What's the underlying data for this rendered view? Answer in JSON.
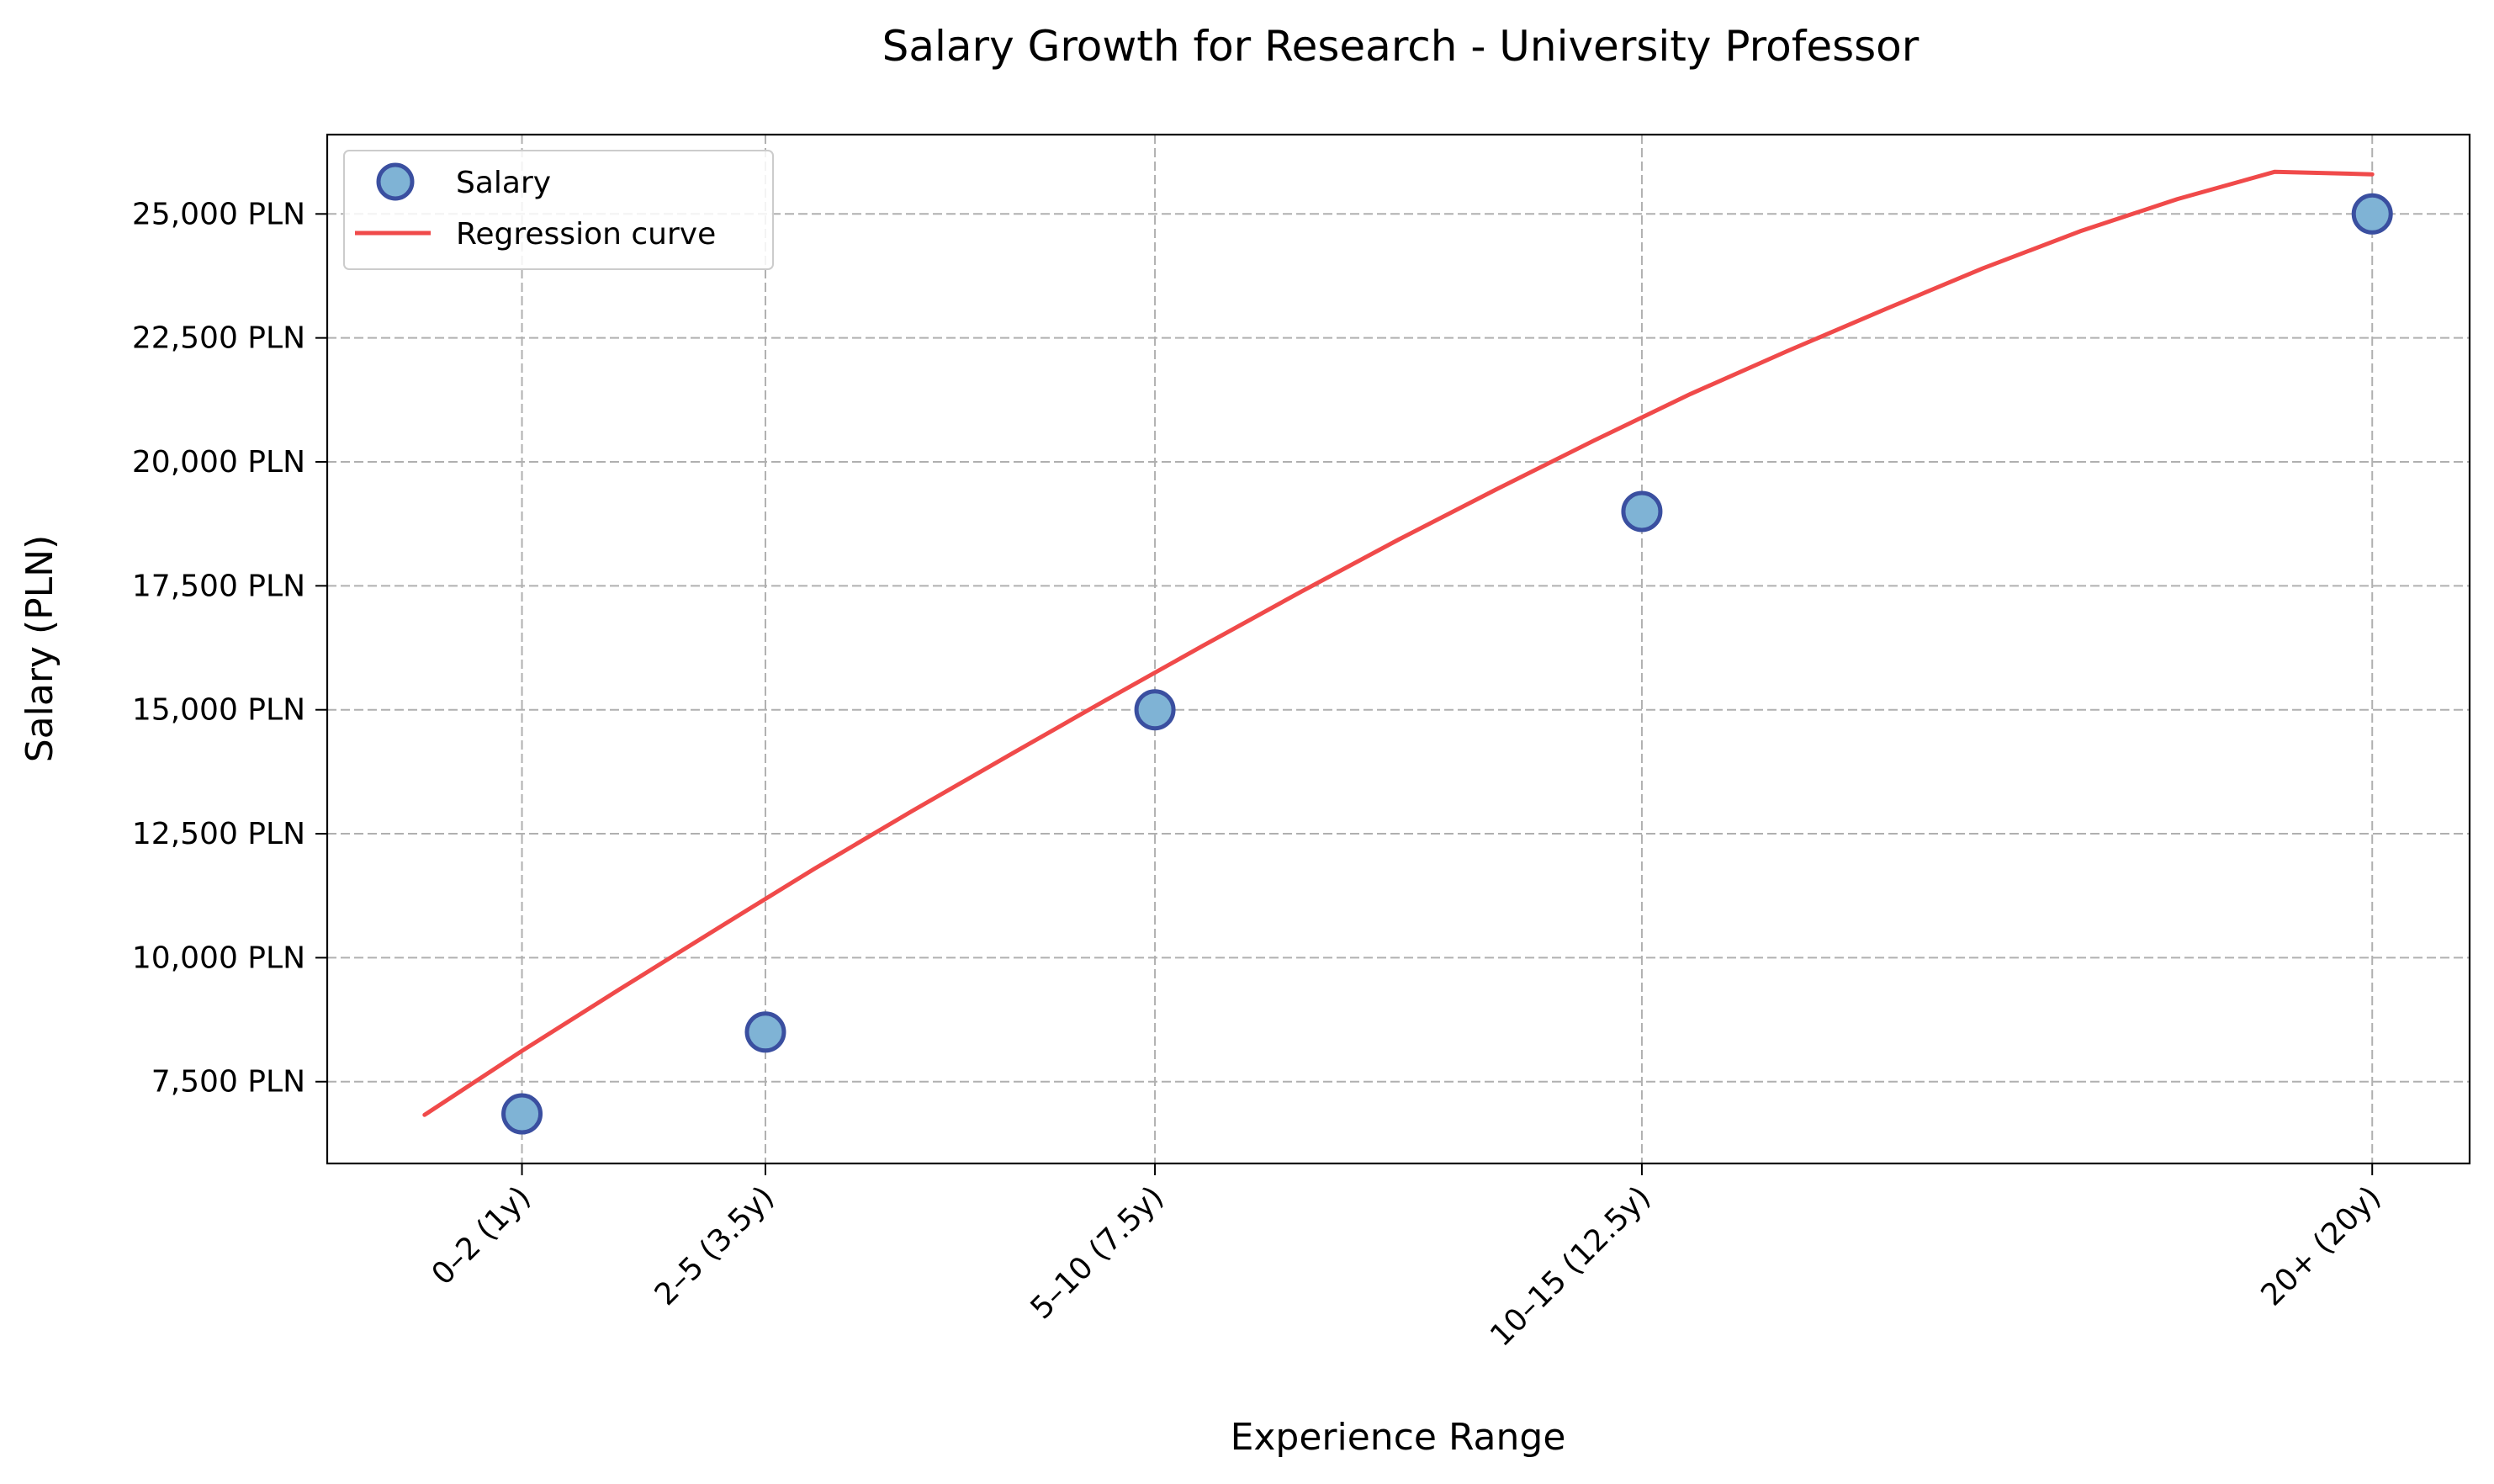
{
  "chart_data": {
    "type": "scatter",
    "title": "Salary Growth for Research - University Professor",
    "xlabel": "Experience Range",
    "ylabel": "Salary (PLN)",
    "x_tick_labels": [
      "0–2 (1y)",
      "2–5 (3.5y)",
      "5–10 (7.5y)",
      "10–15 (12.5y)",
      "20+ (20y)"
    ],
    "x_tick_values": [
      1,
      3.5,
      7.5,
      12.5,
      20
    ],
    "y_ticks": [
      7500,
      10000,
      12500,
      15000,
      17500,
      20000,
      22500,
      25000
    ],
    "y_tick_labels": [
      "7,500 PLN",
      "10,000 PLN",
      "12,500 PLN",
      "15,000 PLN",
      "17,500 PLN",
      "20,000 PLN",
      "22,500 PLN",
      "25,000 PLN"
    ],
    "xlim": [
      -1,
      21
    ],
    "ylim": [
      5850,
      26600
    ],
    "grid": true,
    "legend_position": "top-left",
    "series": [
      {
        "name": "Salary",
        "kind": "scatter",
        "color": "#7fb3d5",
        "edge_color": "#3a4fa0",
        "x": [
          1,
          3.5,
          7.5,
          12.5,
          20
        ],
        "y": [
          6850,
          8500,
          15000,
          19000,
          25000
        ]
      },
      {
        "name": "Regression curve",
        "kind": "line",
        "color": "#f04a4a",
        "x": [
          0,
          1,
          2,
          3,
          4,
          5,
          6,
          7,
          8,
          9,
          10,
          11,
          12,
          13,
          14,
          15,
          16,
          17,
          18,
          19,
          20
        ],
        "y": [
          6830,
          8120,
          9360,
          10580,
          11790,
          12950,
          14080,
          15200,
          16300,
          17380,
          18430,
          19440,
          20420,
          21370,
          22240,
          23080,
          23900,
          24650,
          25300,
          25850,
          25800
        ]
      }
    ]
  }
}
